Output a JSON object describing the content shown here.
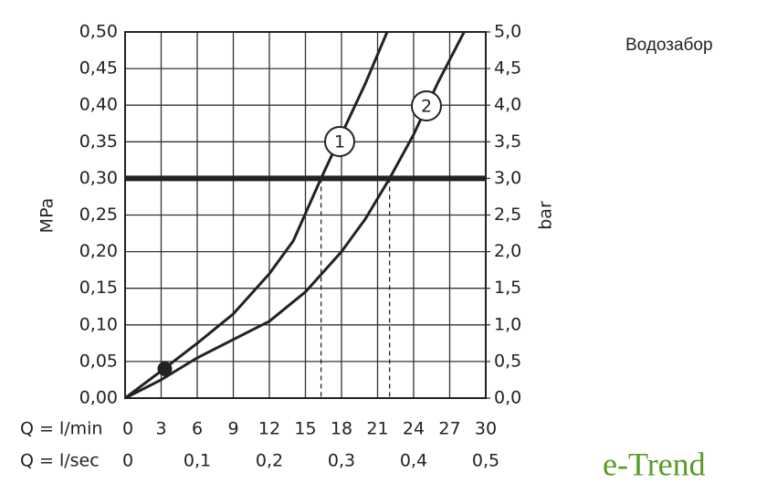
{
  "title": "Водозабор",
  "logo": "e-Trend",
  "chart_data": {
    "type": "line",
    "x_label": "Q = l/min",
    "x2_label": "Q = l/sec",
    "y_label": "MPa",
    "y2_label": "bar",
    "xlim": [
      0,
      30
    ],
    "xticks": [
      0,
      3,
      6,
      9,
      12,
      15,
      18,
      21,
      24,
      27,
      30
    ],
    "x2lim": [
      0,
      0.5
    ],
    "x2ticks": [
      0,
      {
        "value": 0.1,
        "label": "0,1"
      },
      {
        "value": 0.2,
        "label": "0,2"
      },
      {
        "value": 0.3,
        "label": "0,3"
      },
      {
        "value": 0.4,
        "label": "0,4"
      },
      {
        "value": 0.5,
        "label": "0,5"
      }
    ],
    "ylim": [
      0,
      0.5
    ],
    "yticks": [
      {
        "value": 0,
        "label": "0,00"
      },
      {
        "value": 0.05,
        "label": "0,05"
      },
      {
        "value": 0.1,
        "label": "0,10"
      },
      {
        "value": 0.15,
        "label": "0,15"
      },
      {
        "value": 0.2,
        "label": "0,20"
      },
      {
        "value": 0.25,
        "label": "0,25"
      },
      {
        "value": 0.3,
        "label": "0,30"
      },
      {
        "value": 0.35,
        "label": "0,35"
      },
      {
        "value": 0.4,
        "label": "0,40"
      },
      {
        "value": 0.45,
        "label": "0,45"
      },
      {
        "value": 0.5,
        "label": "0,50"
      }
    ],
    "y2lim": [
      0,
      5
    ],
    "y2ticks": [
      {
        "value": 0,
        "label": "0,0"
      },
      {
        "value": 0.5,
        "label": "0,5"
      },
      {
        "value": 1,
        "label": "1,0"
      },
      {
        "value": 1.5,
        "label": "1,5"
      },
      {
        "value": 2,
        "label": "2,0"
      },
      {
        "value": 2.5,
        "label": "2,5"
      },
      {
        "value": 3,
        "label": "3,0"
      },
      {
        "value": 3.5,
        "label": "3,5"
      },
      {
        "value": 4,
        "label": "4,0"
      },
      {
        "value": 4.5,
        "label": "4,5"
      },
      {
        "value": 5,
        "label": "5,0"
      }
    ],
    "grid": true,
    "reference_y": 0.3,
    "reference_x": [
      16.3,
      22
    ],
    "marker": {
      "x": 3.3,
      "y": 0.04
    },
    "series": [
      {
        "name": "1",
        "color": "#222222",
        "x": [
          0,
          3,
          6,
          9,
          12,
          14,
          16.3,
          18,
          20,
          21.8
        ],
        "values": [
          0,
          0.037,
          0.075,
          0.115,
          0.17,
          0.215,
          0.3,
          0.36,
          0.43,
          0.5
        ]
      },
      {
        "name": "2",
        "color": "#222222",
        "x": [
          0,
          3,
          6,
          9,
          12,
          15,
          18,
          20,
          22,
          24,
          26,
          28.2
        ],
        "values": [
          0,
          0.025,
          0.055,
          0.08,
          0.105,
          0.145,
          0.2,
          0.245,
          0.3,
          0.36,
          0.43,
          0.5
        ]
      }
    ]
  }
}
